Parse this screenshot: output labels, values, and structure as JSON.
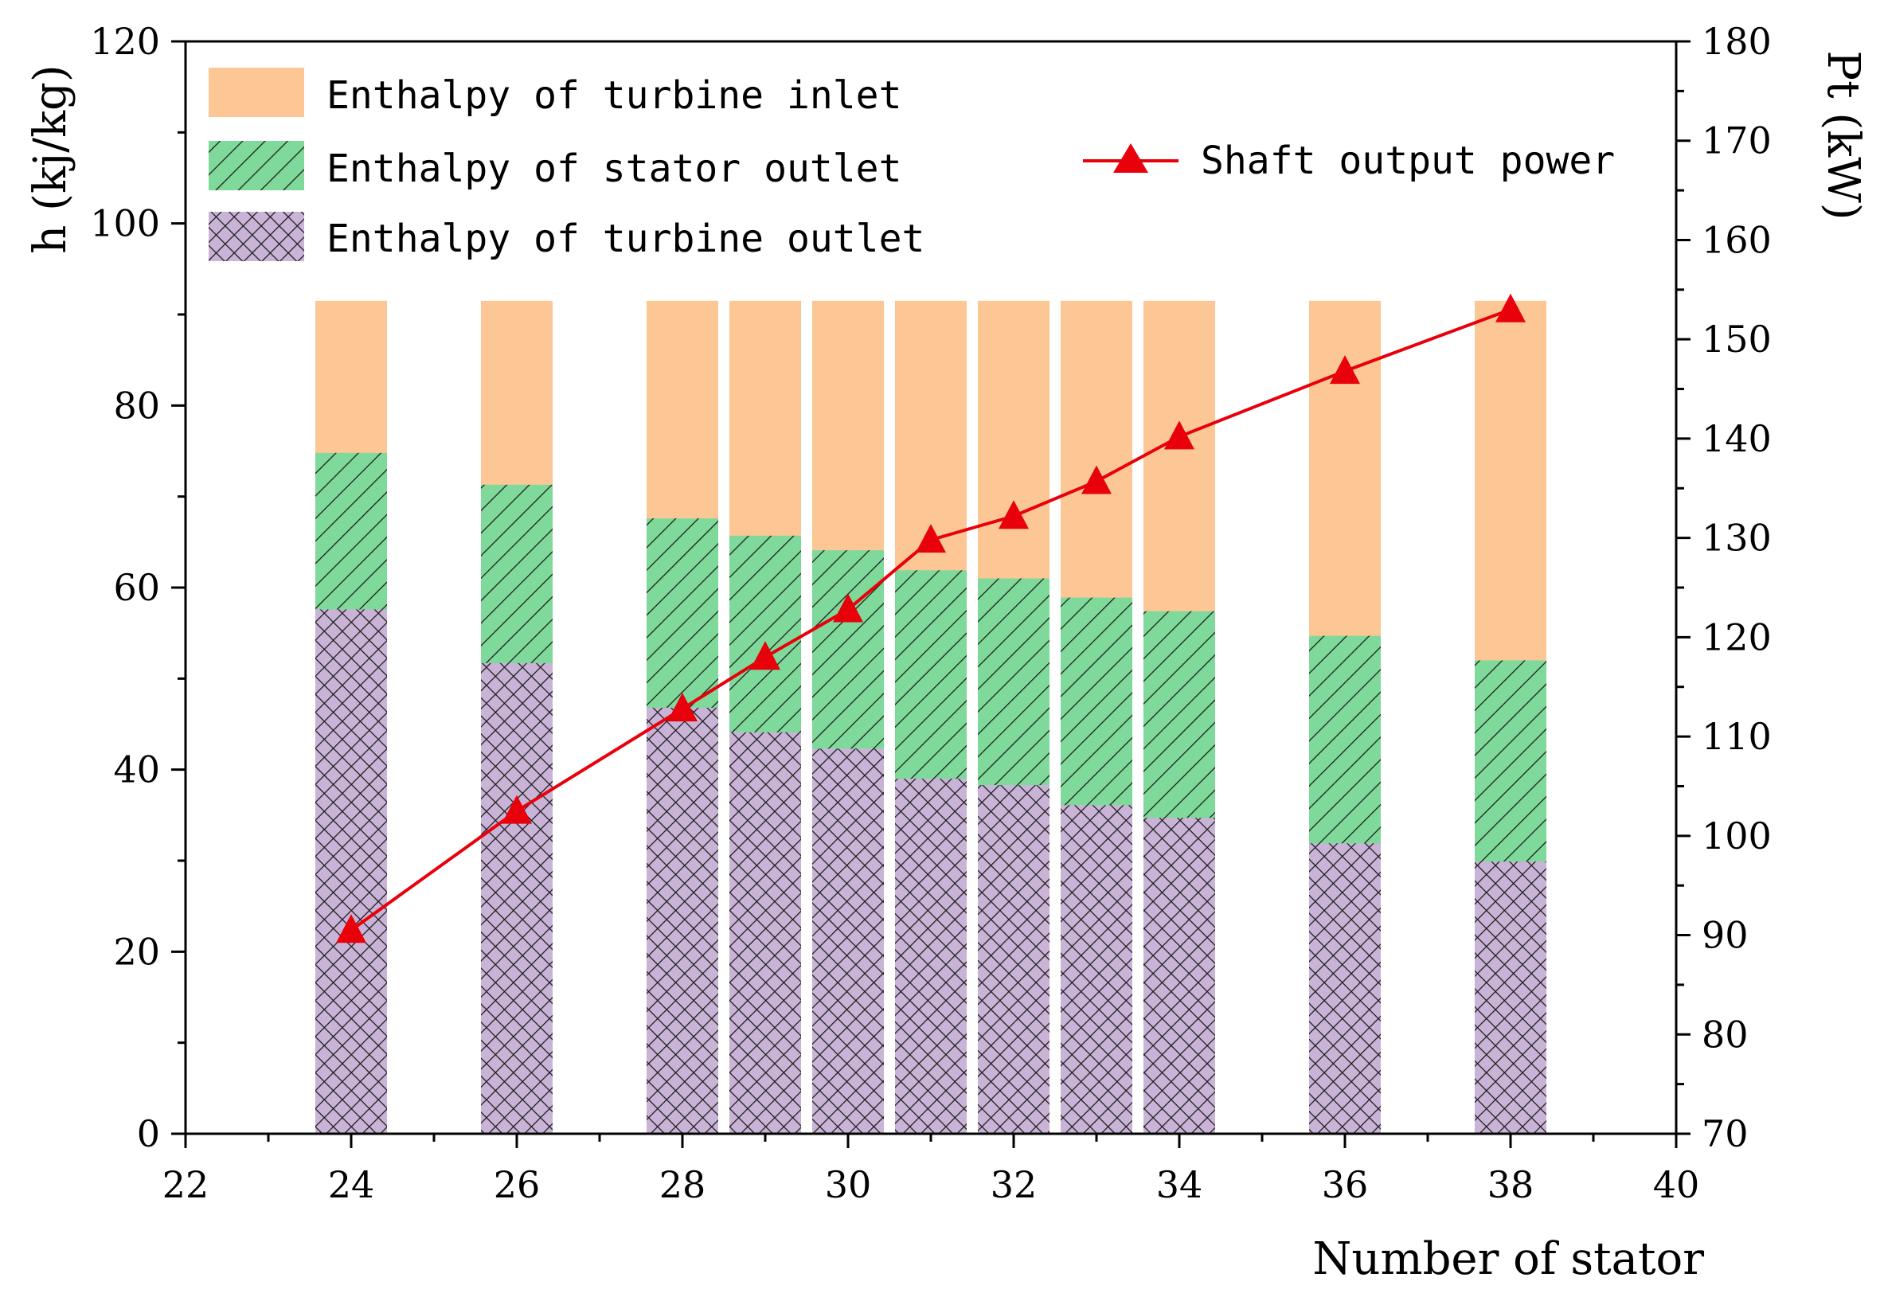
{
  "chart_data": {
    "type": "bar",
    "subtype": "overlapping-bars-with-line",
    "xlabel": "Number of stator",
    "ylabel": "h (kj/kg)",
    "y2label": "Pt (kW)",
    "xlim": [
      22,
      40
    ],
    "ylim": [
      0,
      120
    ],
    "y2lim": [
      70,
      180
    ],
    "x_ticks": [
      22,
      24,
      26,
      28,
      30,
      32,
      34,
      36,
      38,
      40
    ],
    "y_ticks": [
      0,
      20,
      40,
      60,
      80,
      100,
      120
    ],
    "y2_ticks": [
      70,
      80,
      90,
      100,
      110,
      120,
      130,
      140,
      150,
      160,
      170,
      180
    ],
    "x": [
      24,
      26,
      28,
      29,
      30,
      31,
      32,
      33,
      34,
      36,
      38
    ],
    "series": [
      {
        "name": "Enthalpy of turbine inlet",
        "axis": "left",
        "color": "#FCC794",
        "pattern": "solid",
        "values": [
          91.5,
          91.5,
          91.5,
          91.5,
          91.5,
          91.5,
          91.5,
          91.5,
          91.5,
          91.5,
          91.5
        ]
      },
      {
        "name": "Enthalpy of stator outlet",
        "axis": "left",
        "color": "#7FD99A",
        "pattern": "diagonal-hatch",
        "values": [
          74.8,
          71.3,
          67.6,
          65.7,
          64.1,
          61.9,
          61.0,
          58.9,
          57.4,
          54.7,
          52.0
        ]
      },
      {
        "name": "Enthalpy of turbine outlet",
        "axis": "left",
        "color": "#C9B3D6",
        "pattern": "cross-hatch",
        "values": [
          57.6,
          51.7,
          46.8,
          44.1,
          42.3,
          39.0,
          38.3,
          36.1,
          34.7,
          31.9,
          29.9
        ]
      },
      {
        "name": "Shaft output power",
        "axis": "right",
        "type": "line",
        "marker": "triangle",
        "color": "#E8000B",
        "values": [
          90.5,
          102.5,
          112.8,
          118.0,
          122.8,
          129.8,
          132.2,
          135.7,
          140.2,
          146.8,
          153.0
        ]
      }
    ]
  }
}
